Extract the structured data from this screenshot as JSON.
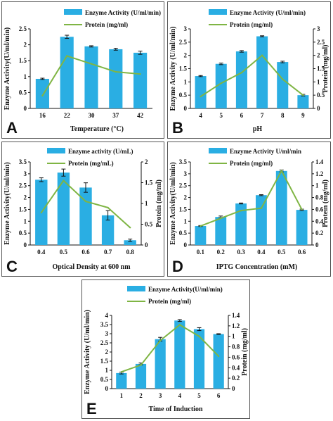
{
  "colors": {
    "bar": "#2aaee3",
    "line": "#7fb544",
    "axis": "#111111",
    "error": "#111111"
  },
  "chart_data": [
    {
      "panel": "A",
      "type": "bar",
      "categories": [
        "16",
        "22",
        "30",
        "37",
        "42"
      ],
      "xlabel": "Temperature (°C)",
      "ylabel": "Enzyme Activity(U/ml/min)",
      "y2label": "",
      "ylim": [
        0,
        2.5
      ],
      "yticks": [
        "0",
        "0.5",
        "1",
        "1.5",
        "2",
        "2.5"
      ],
      "y2lim": [
        0,
        2.5
      ],
      "y2ticks": [],
      "series": [
        {
          "name": "Enzyme Activity (U/ml/min)",
          "kind": "bar",
          "axis": "left",
          "values": [
            0.93,
            2.25,
            1.95,
            1.86,
            1.75
          ],
          "errors": [
            0.02,
            0.05,
            0.02,
            0.03,
            0.05
          ]
        },
        {
          "name": "Protein (mg/ml)",
          "kind": "line",
          "axis": "left",
          "values": [
            0.4,
            1.65,
            1.4,
            1.15,
            1.08
          ]
        }
      ]
    },
    {
      "panel": "B",
      "type": "bar",
      "categories": [
        "4",
        "5",
        "6",
        "7",
        "8",
        "9"
      ],
      "xlabel": "pH",
      "ylabel": "Enzyme Activity (U/ml/min)",
      "y2label": "Protein (mg/ml)",
      "ylim": [
        0,
        3
      ],
      "yticks": [
        "0",
        "0.5",
        "1",
        "1.5",
        "2",
        "2.5",
        "3"
      ],
      "y2lim": [
        0,
        3
      ],
      "y2ticks": [
        "0",
        "0.5",
        "1",
        "1.5",
        "2",
        "2.5",
        "3"
      ],
      "series": [
        {
          "name": "Enzyme Activity (U/ml/min)",
          "kind": "bar",
          "axis": "left",
          "values": [
            1.22,
            1.68,
            2.15,
            2.72,
            1.75,
            0.5
          ],
          "errors": [
            0.02,
            0.03,
            0.03,
            0.02,
            0.03,
            0.03
          ]
        },
        {
          "name": "Protein (mg/ml)",
          "kind": "line",
          "axis": "right",
          "values": [
            0.45,
            0.95,
            1.35,
            2.0,
            1.1,
            0.5
          ]
        }
      ]
    },
    {
      "panel": "C",
      "type": "bar",
      "categories": [
        "0.4",
        "0.5",
        "0.6",
        "0.7",
        "0.8"
      ],
      "xlabel": "Optical Density at 600 nm",
      "ylabel": "Enzyme Activity(U/ml/min)",
      "y2label": "Protein (mg/ml)",
      "ylim": [
        0,
        3.5
      ],
      "yticks": [
        "0",
        "0.5",
        "1",
        "1.5",
        "2",
        "2.5",
        "3",
        "3.5"
      ],
      "y2lim": [
        0,
        2
      ],
      "y2ticks": [
        "0",
        "0.5",
        "1",
        "1.5",
        "2"
      ],
      "series": [
        {
          "name": "Enzyme activity (U/mL)",
          "kind": "bar",
          "axis": "left",
          "values": [
            2.75,
            3.05,
            2.42,
            1.25,
            0.2
          ],
          "errors": [
            0.08,
            0.15,
            0.2,
            0.2,
            0.05
          ]
        },
        {
          "name": "Protein (mg/mL)",
          "kind": "line",
          "axis": "right",
          "values": [
            0.78,
            1.55,
            1.05,
            0.9,
            0.42
          ]
        }
      ]
    },
    {
      "panel": "D",
      "type": "bar",
      "categories": [
        "0.1",
        "0.2",
        "0.3",
        "0.4",
        "0.5",
        "0.6"
      ],
      "xlabel": "IPTG Concentration (mM)",
      "ylabel": "Enzyme Activity(U/ml/min)",
      "y2label": "Protein (mg/ml)",
      "ylim": [
        0,
        3.5
      ],
      "yticks": [
        "0",
        "0.5",
        "1",
        "1.5",
        "2",
        "2.5",
        "3",
        "3.5"
      ],
      "y2lim": [
        0,
        1.4
      ],
      "y2ticks": [
        "0",
        "0.2",
        "0.4",
        "0.6",
        "0.8",
        "1",
        "1.2",
        "1.4"
      ],
      "series": [
        {
          "name": "Enzyme Activity U/ml/min",
          "kind": "bar",
          "axis": "left",
          "values": [
            0.8,
            1.18,
            1.75,
            2.1,
            3.12,
            1.48
          ],
          "errors": [
            0.02,
            0.04,
            0.02,
            0.02,
            0.04,
            0.03
          ]
        },
        {
          "name": "Protein (mg/ml)",
          "kind": "line",
          "axis": "right",
          "values": [
            0.32,
            0.45,
            0.58,
            0.62,
            1.25,
            0.6
          ]
        }
      ]
    },
    {
      "panel": "E",
      "type": "bar",
      "categories": [
        "1",
        "2",
        "3",
        "4",
        "5",
        "6"
      ],
      "xlabel": "Time of Induction",
      "ylabel": "Enzyme Activity (U/ml/min)",
      "y2label": "Protein (mg/ml)",
      "ylim": [
        0,
        4
      ],
      "yticks": [
        "0",
        "0.5",
        "1",
        "1.5",
        "2",
        "2.5",
        "3",
        "3.5",
        "4"
      ],
      "y2lim": [
        0,
        1.4
      ],
      "y2ticks": [
        "0",
        "0.2",
        "0.4",
        "0.6",
        "0.8",
        "1",
        "1.2",
        "1.4"
      ],
      "series": [
        {
          "name": "Enzyme Activity(U/ml/min)",
          "kind": "bar",
          "axis": "left",
          "values": [
            0.85,
            1.35,
            2.7,
            3.72,
            3.25,
            2.98
          ],
          "errors": [
            0.05,
            0.05,
            0.1,
            0.05,
            0.08,
            0.02
          ]
        },
        {
          "name": "Protein (mg/ml)",
          "kind": "line",
          "axis": "right",
          "values": [
            0.32,
            0.45,
            0.92,
            1.22,
            1.0,
            0.62
          ]
        }
      ]
    }
  ]
}
